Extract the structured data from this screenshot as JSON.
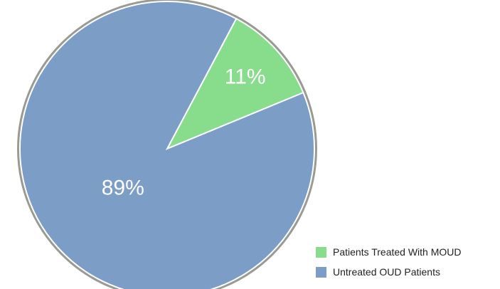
{
  "chart_data": {
    "type": "pie",
    "title": "",
    "slices": [
      {
        "name": "Patients Treated With MOUD",
        "value": 11,
        "label": "11%",
        "color": "#88dd8c"
      },
      {
        "name": "Untreated OUD Patients",
        "value": 89,
        "label": "89%",
        "color": "#7b9dc6"
      }
    ],
    "start_angle_deg": 28,
    "direction": "clockwise",
    "legend_position": "bottom-right",
    "border_color": "#9a9a94"
  }
}
